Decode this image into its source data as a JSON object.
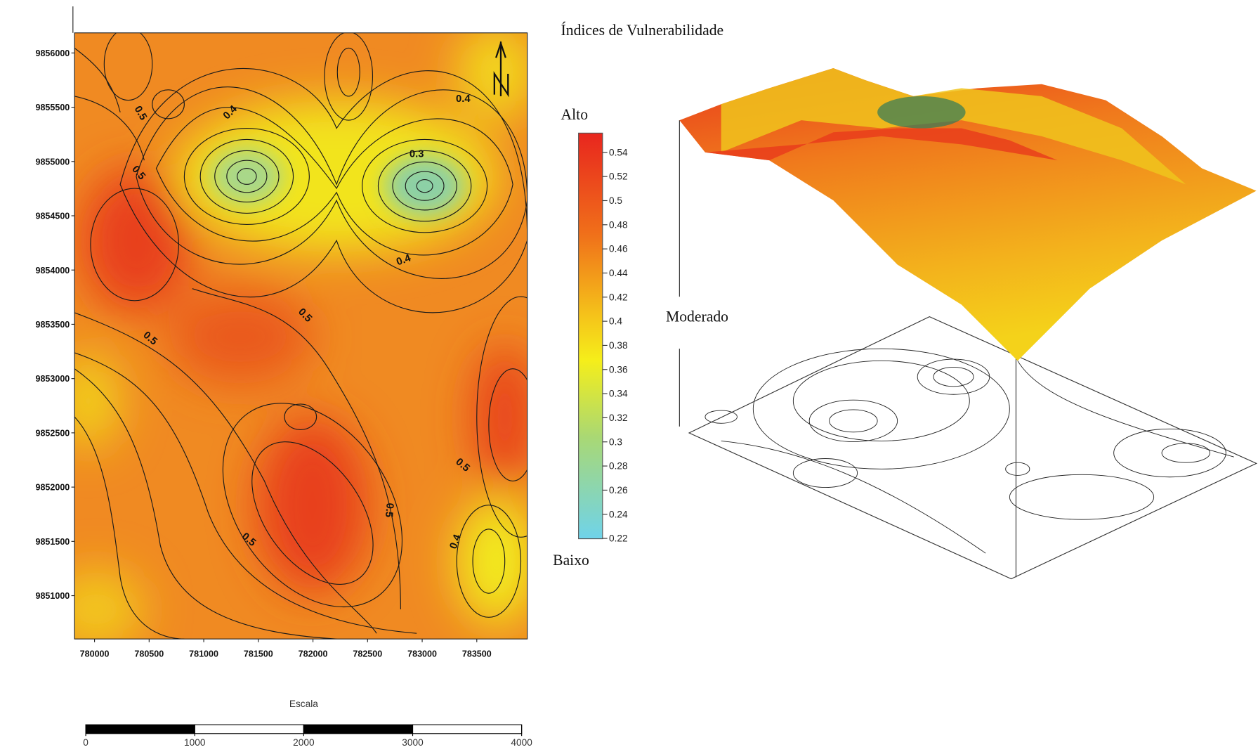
{
  "title": "Índices de Vulnerabilidade",
  "map": {
    "xlim": [
      779817,
      783962
    ],
    "ylim": [
      9850601,
      9856185
    ],
    "xticks": [
      780000,
      780500,
      781000,
      781500,
      782000,
      782500,
      783000,
      783500
    ],
    "yticks": [
      9851000,
      9851500,
      9852000,
      9852500,
      9853000,
      9853500,
      9854000,
      9854500,
      9855000,
      9855500,
      9856000
    ],
    "contour_labels": [
      0.5,
      0.4,
      0.4,
      0.3,
      0.5,
      0.4,
      0.5,
      0.5,
      0.5,
      0.5,
      0.5,
      0.4
    ]
  },
  "colorbar": {
    "lim": [
      0.2197,
      0.556
    ],
    "ticks": [
      0.22,
      0.24,
      0.26,
      0.28,
      0.3,
      0.32,
      0.34,
      0.36,
      0.38,
      0.4,
      0.42,
      0.44,
      0.46,
      0.48,
      0.5,
      0.52,
      0.54
    ],
    "high": "Alto",
    "mid": "Moderado",
    "low": "Baixo"
  },
  "scale_bar": {
    "title": "Escala",
    "lim": [
      0,
      4000
    ],
    "ticks": [
      0,
      1000,
      2000,
      3000,
      4000
    ]
  }
}
